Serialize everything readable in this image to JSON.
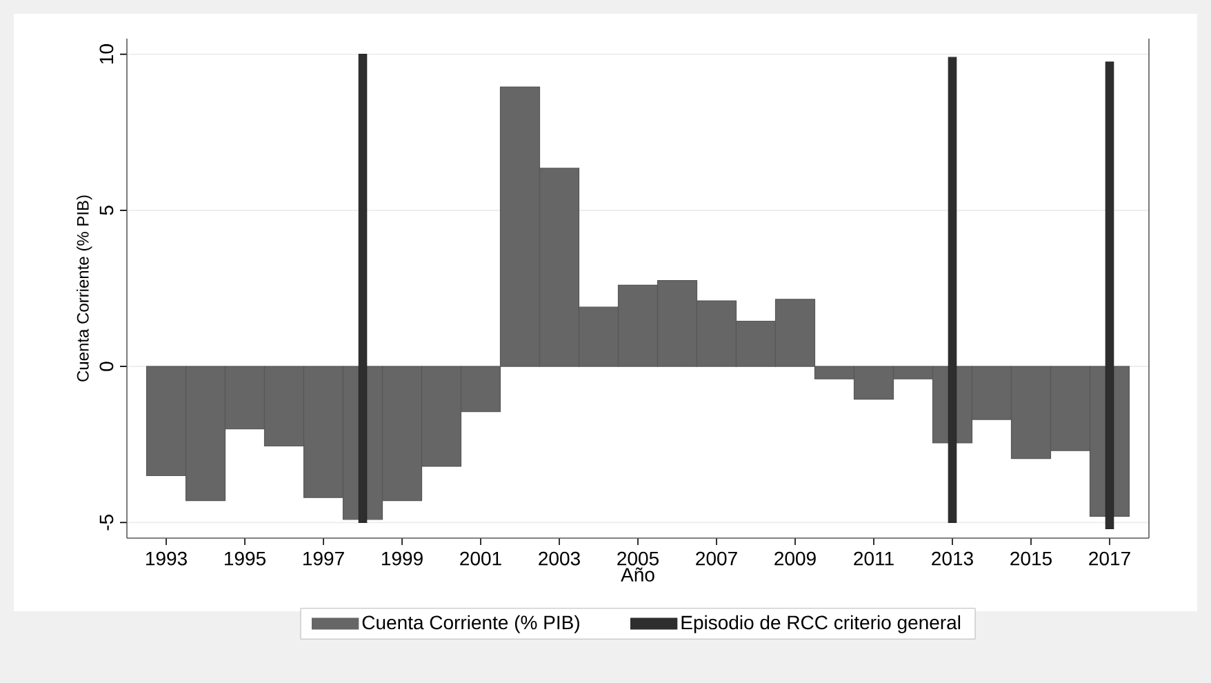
{
  "chart_data": {
    "type": "bar",
    "xlabel": "Año",
    "ylabel": "Cuenta Corriente (% PIB)",
    "x": [
      1993,
      1994,
      1995,
      1996,
      1997,
      1998,
      1999,
      2000,
      2001,
      2002,
      2003,
      2004,
      2005,
      2006,
      2007,
      2008,
      2009,
      2010,
      2011,
      2012,
      2013,
      2014,
      2015,
      2016,
      2017
    ],
    "series": [
      {
        "name": "Cuenta Corriente (% PIB)",
        "color": "#666666",
        "values": [
          -3.5,
          -4.3,
          -2.0,
          -2.55,
          -4.2,
          -4.9,
          -4.3,
          -3.2,
          -1.45,
          8.95,
          6.35,
          1.9,
          2.6,
          2.75,
          2.1,
          1.45,
          2.15,
          -0.4,
          -1.05,
          -0.4,
          -2.45,
          -1.7,
          -2.95,
          -2.7,
          -4.8
        ]
      },
      {
        "name": "Episodio de RCC criterio general",
        "color": "#2e2e2e",
        "x": [
          1998,
          2013,
          2017
        ],
        "base": [
          -5,
          -5,
          -5.2
        ],
        "values": [
          15,
          14.9,
          14.95
        ]
      }
    ],
    "xlim": [
      1992,
      2018
    ],
    "ylim": [
      -5.5,
      10.5
    ],
    "xticks": [
      1993,
      1995,
      1997,
      1999,
      2001,
      2003,
      2005,
      2007,
      2009,
      2011,
      2013,
      2015,
      2017
    ],
    "yticks": [
      -5,
      0,
      5,
      10
    ],
    "grid": "y",
    "legend": "bottom"
  }
}
